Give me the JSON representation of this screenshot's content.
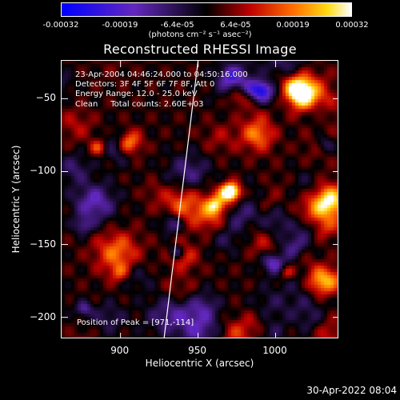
{
  "colorbar": {
    "ticks": [
      "-0.00032",
      "-0.00019",
      "-6.4e-05",
      "6.4e-05",
      "0.00019",
      "0.00032"
    ],
    "values": [
      -0.00032,
      -0.00019,
      -6.4e-05,
      6.4e-05,
      0.00019,
      0.00032
    ],
    "range": [
      -0.00032,
      0.00032
    ],
    "unit_label": "(photons cm⁻² s⁻¹ asec⁻²)"
  },
  "chart_data": {
    "type": "heatmap",
    "title": "Reconstructed RHESSI Image",
    "xlabel": "Heliocentric X (arcsec)",
    "ylabel": "Heliocentric Y (arcsec)",
    "xlim": [
      862,
      1041
    ],
    "ylim": [
      -215,
      -24
    ],
    "x_ticks": [
      900,
      950,
      1000
    ],
    "y_ticks": [
      -50,
      -100,
      -150,
      -200
    ],
    "x_tick_labels": [
      "900",
      "950",
      "1000"
    ],
    "y_tick_labels": [
      "−50",
      "−100",
      "−150",
      "−200"
    ],
    "colormap": "blue-purple-red-yellow-white",
    "limb_line": [
      [
        950,
        -24
      ],
      [
        928,
        -215
      ]
    ],
    "peak": [
      971,
      -114
    ]
  },
  "annotations": {
    "lines": [
      "23-Apr-2004 04:46:24.000 to 04:50:16.000",
      "Detectors: 3F 4F 5F 6F 7F 8F, Att 0",
      "Energy Range: 12.0 - 25.0 keV",
      "Clean     Total counts: 2.60E+03"
    ],
    "peak_label": "Position of Peak = [971,-114]"
  },
  "timestamp": "30-Apr-2022 08:04"
}
